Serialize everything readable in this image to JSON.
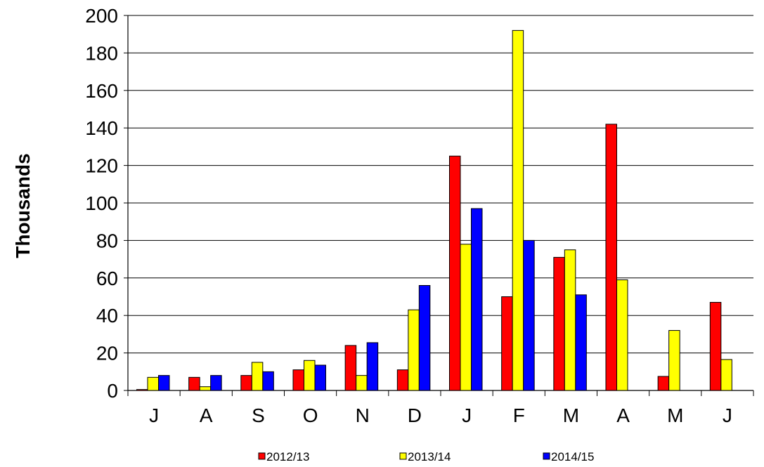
{
  "chart_data": {
    "type": "bar",
    "categories": [
      "J",
      "A",
      "S",
      "O",
      "N",
      "D",
      "J",
      "F",
      "M",
      "A",
      "M",
      "J"
    ],
    "series": [
      {
        "name": "2012/13",
        "color": "#ff0000",
        "values": [
          0.5,
          7,
          8,
          11,
          24,
          11,
          125,
          50,
          71,
          142,
          7.5,
          47
        ]
      },
      {
        "name": "2013/14",
        "color": "#ffff00",
        "values": [
          7,
          2,
          15,
          16,
          8,
          43,
          78,
          192,
          75,
          59,
          32,
          16.5
        ]
      },
      {
        "name": "2014/15",
        "color": "#0000ff",
        "values": [
          8,
          8,
          10,
          13.5,
          25.5,
          56,
          97,
          80,
          51,
          null,
          null,
          null
        ]
      }
    ],
    "title": "",
    "xlabel": "",
    "ylabel": "Thousands",
    "ylim": [
      0,
      200
    ],
    "yticks": [
      0,
      20,
      40,
      60,
      80,
      100,
      120,
      140,
      160,
      180,
      200
    ],
    "grid": true,
    "legend_position": "bottom"
  }
}
